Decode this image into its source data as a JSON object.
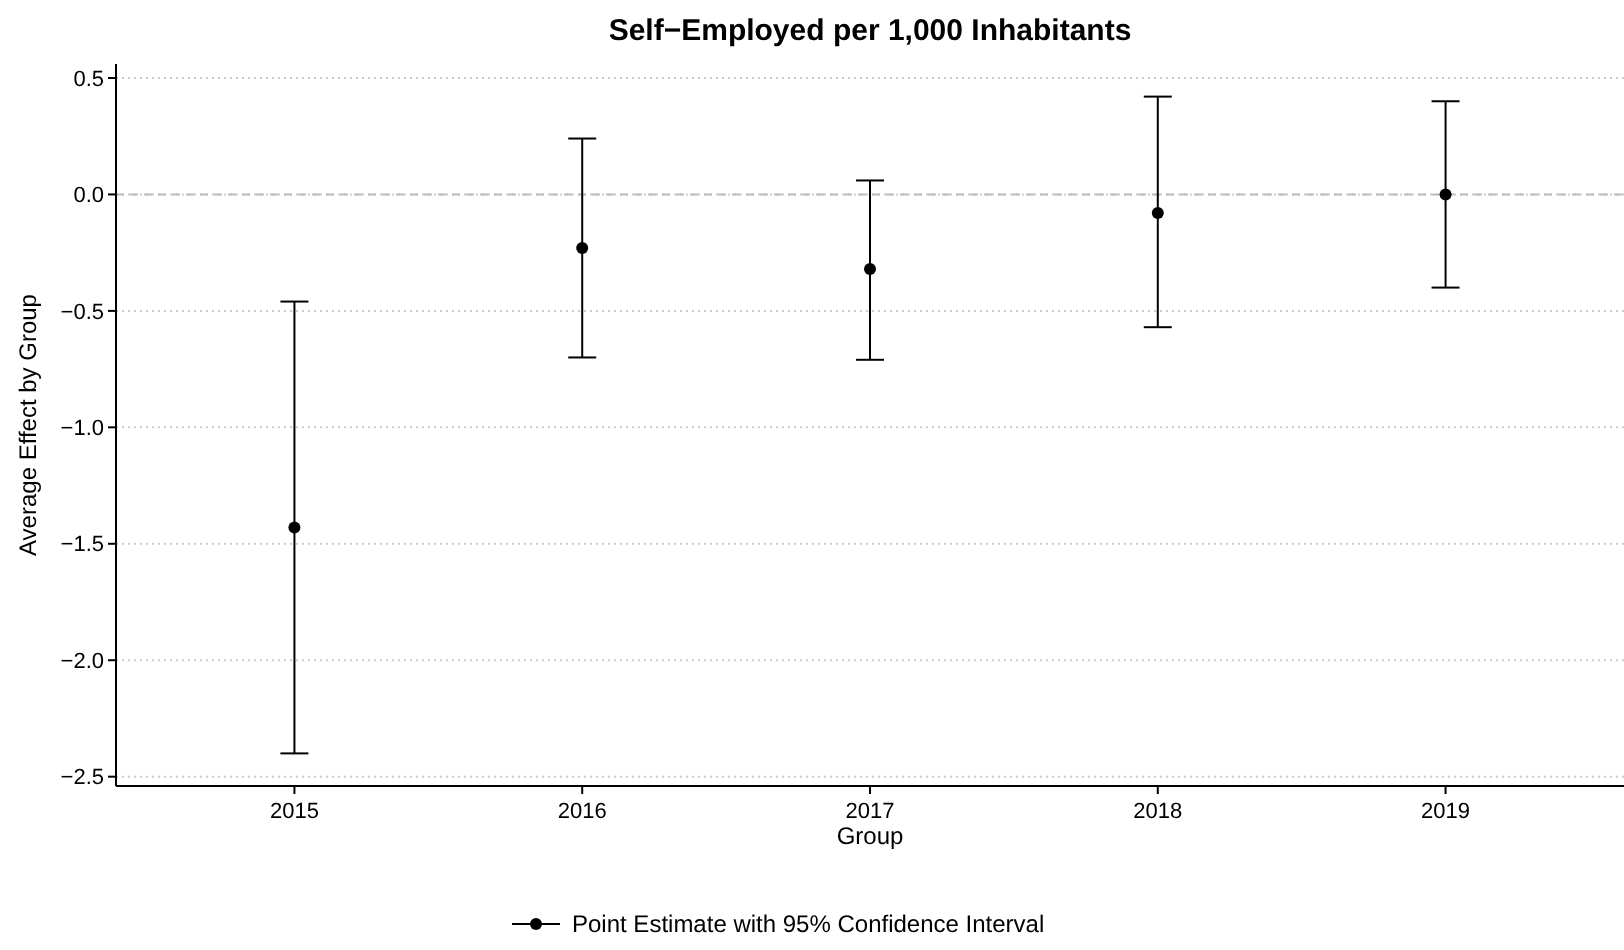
{
  "chart_data": {
    "type": "scatter",
    "title": "Self−Employed per 1,000 Inhabitants",
    "xlabel": "Group",
    "ylabel": "Average Effect by Group",
    "categories": [
      "2015",
      "2016",
      "2017",
      "2018",
      "2019"
    ],
    "series": [
      {
        "name": "Point Estimate with 95% Confidence Interval",
        "color": "#000000",
        "values": [
          -1.43,
          -0.23,
          -0.32,
          -0.08,
          0.0
        ],
        "errors": [
          [
            -2.4,
            -0.46
          ],
          [
            -0.7,
            0.24
          ],
          [
            -0.71,
            0.06
          ],
          [
            -0.57,
            0.42
          ],
          [
            -0.4,
            0.4
          ]
        ]
      }
    ],
    "ylim": [
      -2.54,
      0.56
    ],
    "yticks": [
      {
        "value": 0.5,
        "label": "0.5"
      },
      {
        "value": 0,
        "label": "0.0"
      },
      {
        "value": -0.5,
        "label": "−0.5"
      },
      {
        "value": -1,
        "label": "−1.0"
      },
      {
        "value": -1.5,
        "label": "−1.5"
      },
      {
        "value": -2,
        "label": "−2.0"
      },
      {
        "value": -2.5,
        "label": "−2.5"
      }
    ],
    "grid": "y",
    "marker": "circle",
    "legend": "bottom",
    "ref_lines": [
      {
        "axis": "y",
        "value": 0,
        "color": "#bbbbbb",
        "line_style": "dashed"
      }
    ]
  }
}
